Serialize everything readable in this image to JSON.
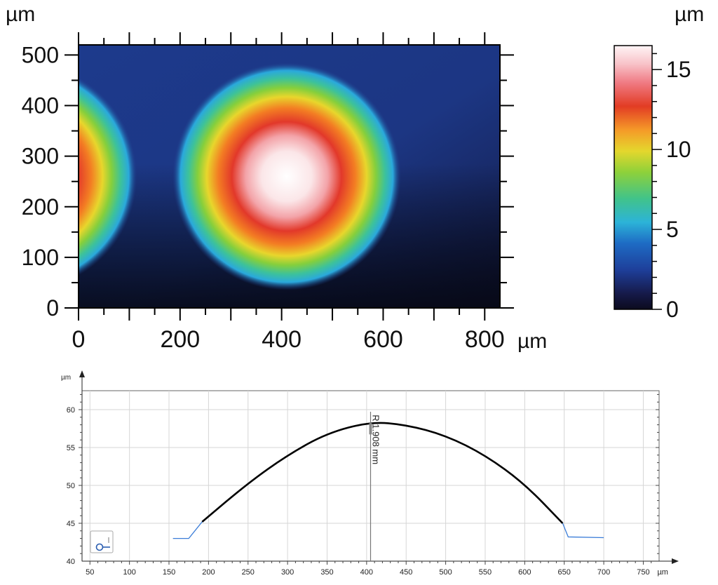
{
  "chart_data": [
    {
      "type": "heatmap",
      "x_unit_label": "µm",
      "y_unit_label": "µm",
      "xlim": [
        0,
        830
      ],
      "ylim": [
        0,
        520
      ],
      "x_ticks": [
        0,
        200,
        400,
        600,
        800
      ],
      "x_tick_labels": [
        "0",
        "200",
        "400",
        "600",
        "800"
      ],
      "y_ticks": [
        0,
        100,
        200,
        300,
        400,
        500
      ],
      "y_tick_labels": [
        "0",
        "100",
        "200",
        "300",
        "400",
        "500"
      ],
      "colorbar": {
        "unit_label": "µm",
        "range": [
          0,
          16.5
        ],
        "ticks": [
          0,
          5,
          10,
          15
        ],
        "tick_labels": [
          "0",
          "5",
          "10",
          "15"
        ]
      },
      "features": [
        {
          "shape": "spherical-cap",
          "center": [
            410,
            260
          ],
          "radius": 225,
          "peak": 16.5
        },
        {
          "shape": "spherical-cap",
          "center": [
            -110,
            260
          ],
          "radius": 225,
          "peak": 16.5
        }
      ]
    },
    {
      "type": "line",
      "y_unit_label": "µm",
      "x_unit_label": "µm",
      "xlim": [
        40,
        770
      ],
      "ylim": [
        40,
        62.5
      ],
      "x_ticks": [
        50,
        100,
        150,
        200,
        250,
        300,
        350,
        400,
        450,
        500,
        550,
        600,
        650,
        700,
        750
      ],
      "x_tick_labels": [
        "50",
        "100",
        "150",
        "200",
        "250",
        "300",
        "350",
        "400",
        "450",
        "500",
        "550",
        "600",
        "650",
        "700",
        "750"
      ],
      "y_ticks": [
        40,
        45,
        50,
        55,
        60
      ],
      "y_tick_labels": [
        "40",
        "45",
        "50",
        "55",
        "60"
      ],
      "grid": true,
      "series": [
        {
          "role": "profile-baseline-left",
          "x": [
            155,
            175,
            192
          ],
          "y": [
            43.0,
            43.0,
            45.2
          ],
          "color": "#3b7dd8"
        },
        {
          "role": "fitted-arc",
          "x": [
            192,
            250,
            300,
            350,
            405,
            450,
            500,
            550,
            600,
            648
          ],
          "y": [
            45.2,
            50.3,
            54.0,
            56.9,
            58.4,
            58.0,
            56.6,
            54.0,
            50.2,
            45.0
          ],
          "color": "#000000"
        },
        {
          "role": "profile-baseline-right",
          "x": [
            648,
            655,
            700
          ],
          "y": [
            45.0,
            43.2,
            43.1
          ],
          "color": "#3b7dd8"
        }
      ],
      "annotation": {
        "label": "R 1.908 mm",
        "x": 405
      },
      "legend_icon": {
        "glyph": "cursor-icon",
        "color": "#2a5db0"
      }
    }
  ]
}
